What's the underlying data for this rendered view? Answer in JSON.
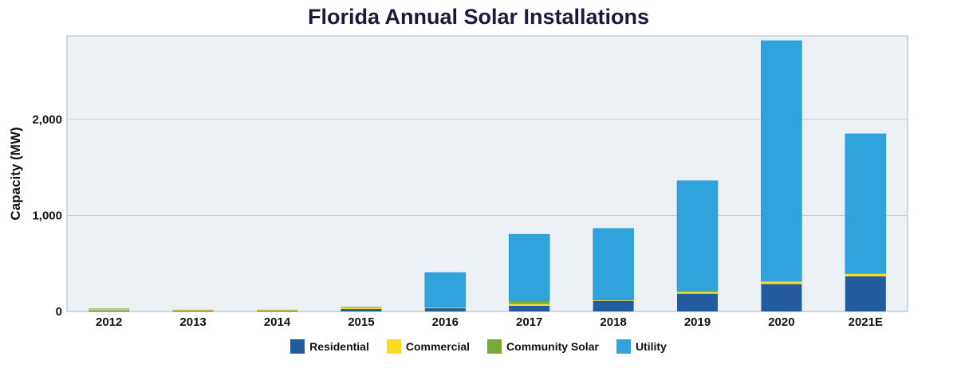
{
  "chart_data": {
    "type": "bar",
    "stacked": true,
    "title": "Florida Annual Solar Installations",
    "xlabel": "",
    "ylabel": "Capacity (MW)",
    "ylim": [
      0,
      2870
    ],
    "yticks": [
      0,
      1000,
      2000
    ],
    "ytick_labels": [
      "0",
      "1,000",
      "2,000"
    ],
    "grid": true,
    "legend_position": "bottom",
    "categories": [
      "2012",
      "2013",
      "2014",
      "2015",
      "2016",
      "2017",
      "2018",
      "2019",
      "2020",
      "2021E"
    ],
    "series": [
      {
        "name": "Residential",
        "color": "#245a9e",
        "values": [
          10,
          8,
          8,
          25,
          33,
          58,
          110,
          185,
          285,
          365
        ]
      },
      {
        "name": "Commercial",
        "color": "#fcd923",
        "values": [
          15,
          12,
          12,
          15,
          10,
          19,
          10,
          17,
          30,
          30
        ]
      },
      {
        "name": "Community Solar",
        "color": "#76aa34",
        "values": [
          5,
          0,
          0,
          8,
          0,
          36,
          0,
          17,
          0,
          0
        ]
      },
      {
        "name": "Utility",
        "color": "#30a3dd",
        "values": [
          0,
          0,
          0,
          0,
          362,
          690,
          745,
          1143,
          2505,
          1455
        ]
      }
    ]
  }
}
